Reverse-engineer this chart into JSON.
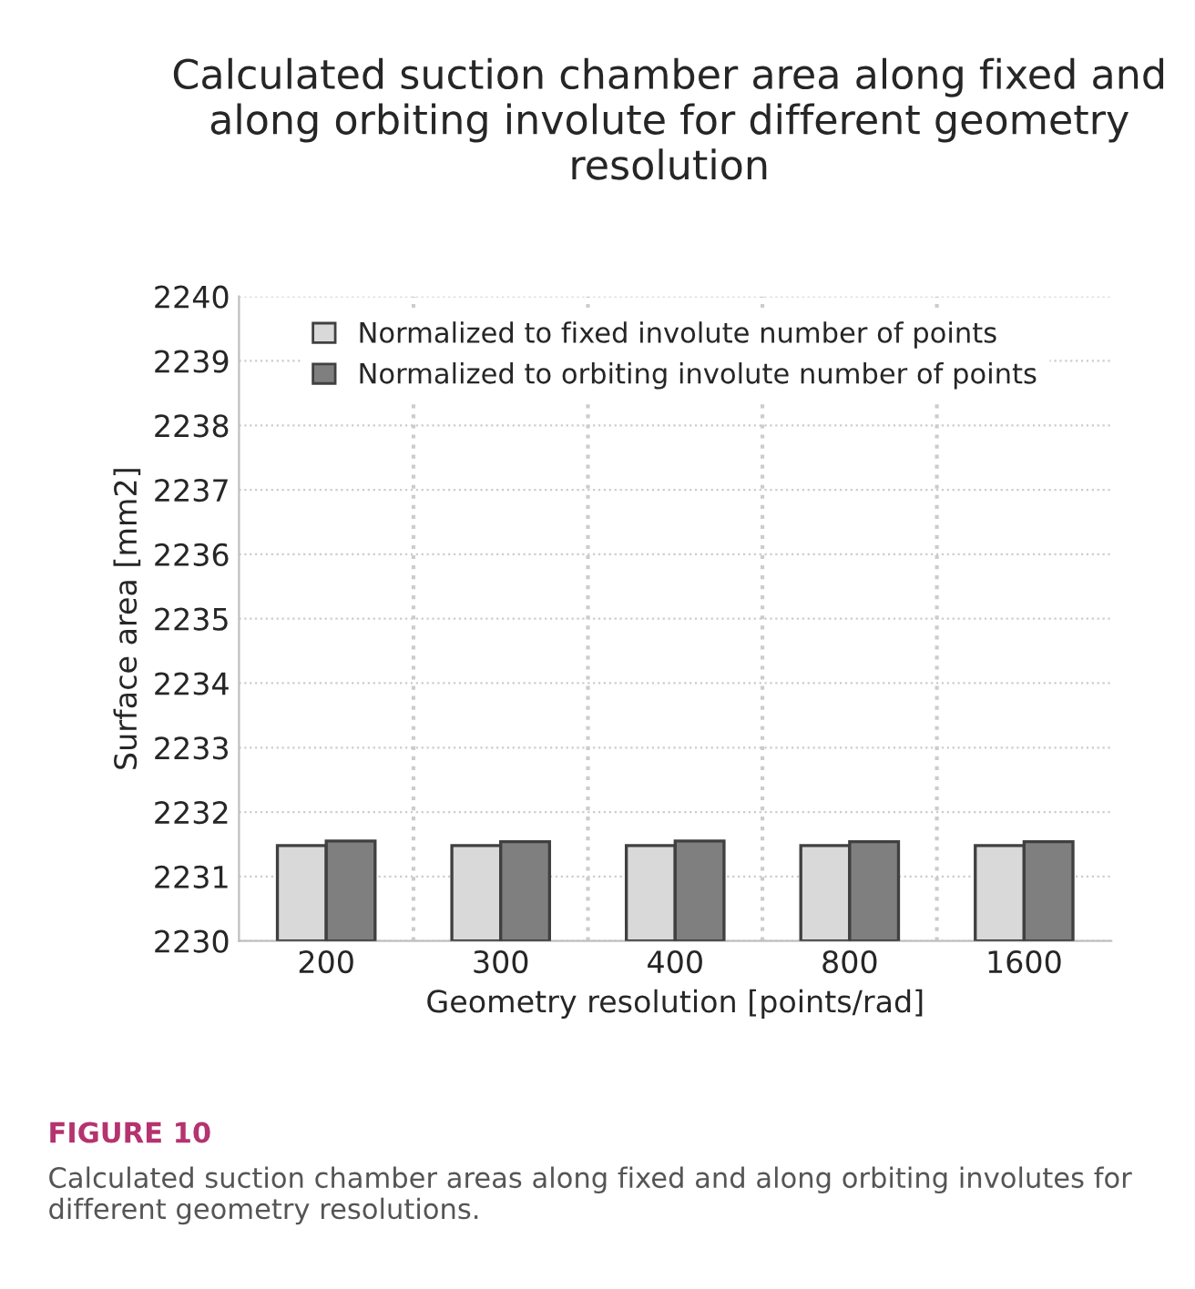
{
  "chart_data": {
    "type": "bar",
    "title": "Calculated suction chamber area along fixed and along orbiting involute for different geometry resolution",
    "xlabel": "Geometry resolution [points/rad]",
    "ylabel": "Surface area [mm2]",
    "categories": [
      "200",
      "300",
      "400",
      "800",
      "1600"
    ],
    "series": [
      {
        "name": "Normalized to fixed involute number of points",
        "color": "#d9d9d9",
        "values": [
          2231.48,
          2231.48,
          2231.48,
          2231.48,
          2231.48
        ]
      },
      {
        "name": "Normalized to orbiting involute number of points",
        "color": "#7f7f7f",
        "values": [
          2231.55,
          2231.54,
          2231.55,
          2231.54,
          2231.54
        ]
      }
    ],
    "ylim": [
      2230,
      2240
    ],
    "yticks": [
      2230,
      2231,
      2232,
      2233,
      2234,
      2235,
      2236,
      2237,
      2238,
      2239,
      2240
    ],
    "grid": true,
    "legend": "top",
    "annotations": [
      "FIGURE 10",
      "Calculated suction chamber areas along fixed and along orbiting involutes for different geometry resolutions."
    ]
  }
}
